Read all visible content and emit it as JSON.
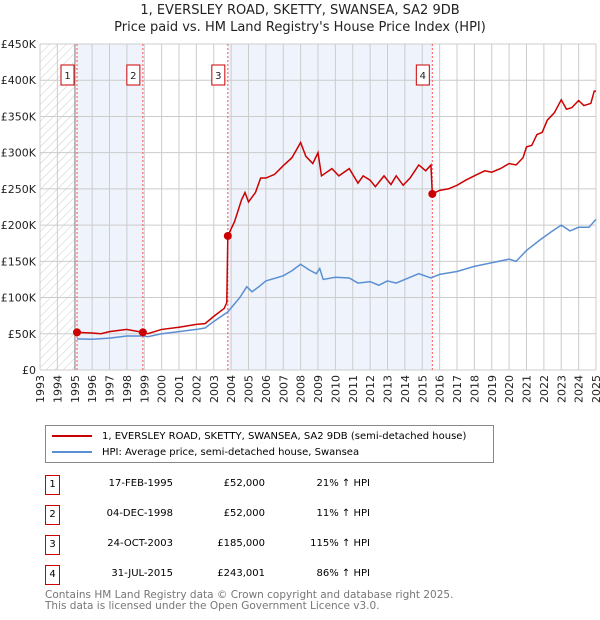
{
  "title": "1, EVERSLEY ROAD, SKETTY, SWANSEA, SA2 9DB",
  "subtitle": "Price paid vs. HM Land Registry's House Price Index (HPI)",
  "chart_data": {
    "type": "line",
    "title": "1, EVERSLEY ROAD, SKETTY, SWANSEA, SA2 9DB — Price paid vs. HM Land Registry's House Price Index (HPI)",
    "xlim": [
      1993,
      2025
    ],
    "ylim": [
      0,
      450000
    ],
    "x_ticks": [
      "1993",
      "1994",
      "1995",
      "1996",
      "1997",
      "1998",
      "1999",
      "2000",
      "2001",
      "2002",
      "2003",
      "2004",
      "2005",
      "2006",
      "2007",
      "2008",
      "2009",
      "2010",
      "2011",
      "2012",
      "2013",
      "2014",
      "2015",
      "2016",
      "2017",
      "2018",
      "2019",
      "2020",
      "2021",
      "2022",
      "2023",
      "2024",
      "2025"
    ],
    "y_ticks": [
      {
        "v": 0,
        "label": "£0"
      },
      {
        "v": 50000,
        "label": "£50K"
      },
      {
        "v": 100000,
        "label": "£100K"
      },
      {
        "v": 150000,
        "label": "£150K"
      },
      {
        "v": 200000,
        "label": "£200K"
      },
      {
        "v": 250000,
        "label": "£250K"
      },
      {
        "v": 300000,
        "label": "£300K"
      },
      {
        "v": 350000,
        "label": "£350K"
      },
      {
        "v": 400000,
        "label": "£400K"
      },
      {
        "v": 450000,
        "label": "£450K"
      }
    ],
    "grid": true,
    "colors": {
      "property": "#cc0000",
      "hpi": "#5b8fd4",
      "shade": "#eef3fc"
    },
    "series": [
      {
        "name": "1, EVERSLEY ROAD, SKETTY, SWANSEA, SA2 9DB (semi-detached house)",
        "points": [
          [
            1995.13,
            52000
          ],
          [
            1996,
            51000
          ],
          [
            1996.5,
            50000
          ],
          [
            1997,
            53000
          ],
          [
            1998,
            56000
          ],
          [
            1998.92,
            52000
          ],
          [
            1999.2,
            50000
          ],
          [
            2000,
            56000
          ],
          [
            2001,
            59000
          ],
          [
            2002,
            63000
          ],
          [
            2002.5,
            64000
          ],
          [
            2003,
            74000
          ],
          [
            2003.6,
            85000
          ],
          [
            2003.75,
            93000
          ],
          [
            2003.81,
            185000
          ],
          [
            2004.2,
            205000
          ],
          [
            2004.6,
            235000
          ],
          [
            2004.8,
            245000
          ],
          [
            2005,
            232000
          ],
          [
            2005.4,
            245000
          ],
          [
            2005.7,
            265000
          ],
          [
            2006,
            265000
          ],
          [
            2006.5,
            270000
          ],
          [
            2007,
            282000
          ],
          [
            2007.5,
            293000
          ],
          [
            2008,
            314000
          ],
          [
            2008.3,
            295000
          ],
          [
            2008.7,
            285000
          ],
          [
            2009,
            300000
          ],
          [
            2009.2,
            268000
          ],
          [
            2009.8,
            278000
          ],
          [
            2010.2,
            268000
          ],
          [
            2010.8,
            278000
          ],
          [
            2011.3,
            258000
          ],
          [
            2011.6,
            268000
          ],
          [
            2012,
            262000
          ],
          [
            2012.3,
            253000
          ],
          [
            2012.8,
            268000
          ],
          [
            2013.2,
            256000
          ],
          [
            2013.5,
            268000
          ],
          [
            2013.9,
            255000
          ],
          [
            2014.3,
            265000
          ],
          [
            2014.8,
            283000
          ],
          [
            2015.2,
            275000
          ],
          [
            2015.5,
            283000
          ],
          [
            2015.58,
            243001
          ],
          [
            2016,
            248000
          ],
          [
            2016.5,
            250000
          ],
          [
            2017,
            255000
          ],
          [
            2017.5,
            262000
          ],
          [
            2018,
            268000
          ],
          [
            2018.6,
            275000
          ],
          [
            2019,
            273000
          ],
          [
            2019.5,
            278000
          ],
          [
            2020,
            285000
          ],
          [
            2020.4,
            283000
          ],
          [
            2020.8,
            293000
          ],
          [
            2021,
            308000
          ],
          [
            2021.3,
            310000
          ],
          [
            2021.6,
            325000
          ],
          [
            2021.9,
            328000
          ],
          [
            2022.2,
            345000
          ],
          [
            2022.6,
            355000
          ],
          [
            2023,
            373000
          ],
          [
            2023.3,
            360000
          ],
          [
            2023.6,
            362000
          ],
          [
            2024,
            372000
          ],
          [
            2024.3,
            365000
          ],
          [
            2024.7,
            368000
          ],
          [
            2024.9,
            385000
          ],
          [
            2025,
            385000
          ]
        ]
      },
      {
        "name": "HPI: Average price, semi-detached house, Swansea",
        "points": [
          [
            1995.13,
            43000
          ],
          [
            1996,
            42500
          ],
          [
            1997,
            44000
          ],
          [
            1998,
            47000
          ],
          [
            1999,
            47000
          ],
          [
            1999.2,
            46000
          ],
          [
            2000,
            50000
          ],
          [
            2001,
            53000
          ],
          [
            2002,
            56000
          ],
          [
            2002.5,
            58000
          ],
          [
            2003,
            67000
          ],
          [
            2003.8,
            80000
          ],
          [
            2004.5,
            100000
          ],
          [
            2004.9,
            115000
          ],
          [
            2005.2,
            108000
          ],
          [
            2005.6,
            115000
          ],
          [
            2006,
            123000
          ],
          [
            2007,
            130000
          ],
          [
            2007.5,
            137000
          ],
          [
            2008,
            146000
          ],
          [
            2008.5,
            138000
          ],
          [
            2008.9,
            133000
          ],
          [
            2009.1,
            140000
          ],
          [
            2009.3,
            125000
          ],
          [
            2010,
            128000
          ],
          [
            2010.8,
            127000
          ],
          [
            2011.3,
            120000
          ],
          [
            2012,
            122000
          ],
          [
            2012.5,
            117000
          ],
          [
            2013,
            123000
          ],
          [
            2013.5,
            120000
          ],
          [
            2014,
            125000
          ],
          [
            2014.8,
            133000
          ],
          [
            2015.5,
            127000
          ],
          [
            2016,
            132000
          ],
          [
            2017,
            136000
          ],
          [
            2018,
            143000
          ],
          [
            2019,
            148000
          ],
          [
            2020,
            153000
          ],
          [
            2020.4,
            150000
          ],
          [
            2021,
            165000
          ],
          [
            2021.8,
            180000
          ],
          [
            2022.5,
            192000
          ],
          [
            2023,
            200000
          ],
          [
            2023.5,
            192000
          ],
          [
            2024,
            197000
          ],
          [
            2024.6,
            197000
          ],
          [
            2025,
            208000
          ]
        ]
      }
    ],
    "sales": [
      {
        "label": "1",
        "x": 1995.13,
        "value": 52000,
        "date": "17-FEB-1995",
        "price": "£52,000",
        "hpi": "21% ↑ HPI"
      },
      {
        "label": "2",
        "x": 1998.92,
        "value": 52000,
        "date": "04-DEC-1998",
        "price": "£52,000",
        "hpi": "11% ↑ HPI"
      },
      {
        "label": "3",
        "x": 2003.81,
        "value": 185000,
        "date": "24-OCT-2003",
        "price": "£185,000",
        "hpi": "115% ↑ HPI"
      },
      {
        "label": "4",
        "x": 2015.58,
        "value": 243001,
        "date": "31-JUL-2015",
        "price": "£243,001",
        "hpi": "86% ↑ HPI"
      }
    ],
    "shaded_ranges": [
      [
        1995.13,
        1998.92
      ],
      [
        2003.81,
        2015.58
      ]
    ],
    "hatched_before": 1995.13
  },
  "legend": {
    "property": "1, EVERSLEY ROAD, SKETTY, SWANSEA, SA2 9DB (semi-detached house)",
    "hpi": "HPI: Average price, semi-detached house, Swansea"
  },
  "footer": {
    "line1": "Contains HM Land Registry data © Crown copyright and database right 2025.",
    "line2": "This data is licensed under the Open Government Licence v3.0."
  }
}
